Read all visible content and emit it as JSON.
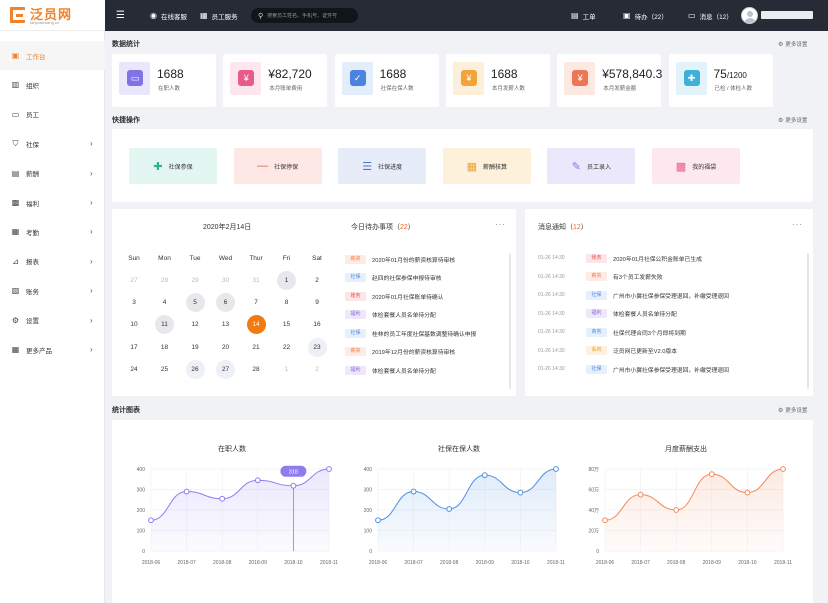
{
  "brand": {
    "name": "泛员网",
    "domain": "fanyuanwang.cn"
  },
  "topbar": {
    "online_service": "在线客服",
    "employee_service": "员工服务",
    "search_placeholder": "搜索员工姓名、手机号、证件号",
    "tickets": "工单",
    "todo": "待办（22）",
    "messages": "消息（12）"
  },
  "sidebar": {
    "items": [
      {
        "label": "工作台",
        "icon": "dashboard-icon",
        "arrow": false,
        "active": true
      },
      {
        "label": "组织",
        "icon": "org-icon",
        "arrow": false
      },
      {
        "label": "员工",
        "icon": "employee-icon",
        "arrow": false
      },
      {
        "label": "社保",
        "icon": "shield-icon",
        "arrow": true
      },
      {
        "label": "薪酬",
        "icon": "wallet-icon",
        "arrow": true
      },
      {
        "label": "福利",
        "icon": "gift-icon",
        "arrow": true
      },
      {
        "label": "考勤",
        "icon": "calendar-icon",
        "arrow": true
      },
      {
        "label": "报表",
        "icon": "report-icon",
        "arrow": true
      },
      {
        "label": "账务",
        "icon": "account-icon",
        "arrow": true
      },
      {
        "label": "设置",
        "icon": "gear-icon",
        "arrow": true
      },
      {
        "label": "更多产品",
        "icon": "grid-icon",
        "arrow": true
      }
    ]
  },
  "stats": {
    "title": "数据统计",
    "settings": "更多设置",
    "items": [
      {
        "value": "1688",
        "unit": "",
        "label": "在职人数",
        "icon": "tv-icon",
        "bg": "#e9e7fb",
        "fg": "#7f73e6"
      },
      {
        "value": "¥82,720",
        "unit": "",
        "label": "本月账单费用",
        "icon": "bill-icon",
        "bg": "#fde6ef",
        "fg": "#e85b8a"
      },
      {
        "value": "1688",
        "unit": "",
        "label": "社保在保人数",
        "icon": "check-doc-icon",
        "bg": "#e4edfb",
        "fg": "#4b84e0"
      },
      {
        "value": "1688",
        "unit": "",
        "label": "本月发薪人数",
        "icon": "salary-user-icon",
        "bg": "#fdf0da",
        "fg": "#f2a33a"
      },
      {
        "value": "¥578,840.3",
        "unit": "",
        "label": "本月发薪金额",
        "icon": "money-bag-icon",
        "bg": "#fde8e2",
        "fg": "#ee7655"
      },
      {
        "value": "75",
        "unit": "/1200",
        "label": "已检 / 体检人数",
        "icon": "medical-icon",
        "bg": "#e2f3fb",
        "fg": "#3fb0d8"
      }
    ]
  },
  "quick": {
    "title": "快捷操作",
    "settings": "更多设置",
    "items": [
      {
        "label": "社保参保",
        "icon": "add-user-icon",
        "bg": "#e3f6f1",
        "fg": "#2cb58d"
      },
      {
        "label": "社保停保",
        "icon": "remove-user-icon",
        "bg": "#fde8e6",
        "fg": "#e05a4f"
      },
      {
        "label": "社保进度",
        "icon": "sliders-icon",
        "bg": "#e6ecf8",
        "fg": "#4f78c9"
      },
      {
        "label": "薪酬核算",
        "icon": "calculator-icon",
        "bg": "#fdf1dc",
        "fg": "#f0a12e"
      },
      {
        "label": "员工录入",
        "icon": "pen-icon",
        "bg": "#ece8fb",
        "fg": "#8a71e0"
      },
      {
        "label": "我的福袋",
        "icon": "gift-box-icon",
        "bg": "#fde8ef",
        "fg": "#e75d8d"
      }
    ]
  },
  "calendar": {
    "title": "2020年2月14日",
    "weekdays": [
      "Sun",
      "Mon",
      "Tue",
      "Wed",
      "Thur",
      "Fri",
      "Sat"
    ],
    "days": [
      {
        "d": "27",
        "s": "muted"
      },
      {
        "d": "28",
        "s": "muted"
      },
      {
        "d": "29",
        "s": "muted"
      },
      {
        "d": "30",
        "s": "muted"
      },
      {
        "d": "31",
        "s": "muted"
      },
      {
        "d": "1",
        "s": "busy"
      },
      {
        "d": "2",
        "s": ""
      },
      {
        "d": "3",
        "s": ""
      },
      {
        "d": "4",
        "s": ""
      },
      {
        "d": "5",
        "s": "busy"
      },
      {
        "d": "6",
        "s": "busy"
      },
      {
        "d": "7",
        "s": ""
      },
      {
        "d": "8",
        "s": ""
      },
      {
        "d": "9",
        "s": ""
      },
      {
        "d": "10",
        "s": ""
      },
      {
        "d": "11",
        "s": "busy"
      },
      {
        "d": "12",
        "s": ""
      },
      {
        "d": "13",
        "s": ""
      },
      {
        "d": "14",
        "s": "today"
      },
      {
        "d": "15",
        "s": ""
      },
      {
        "d": "16",
        "s": ""
      },
      {
        "d": "17",
        "s": ""
      },
      {
        "d": "18",
        "s": ""
      },
      {
        "d": "19",
        "s": ""
      },
      {
        "d": "20",
        "s": ""
      },
      {
        "d": "21",
        "s": ""
      },
      {
        "d": "22",
        "s": ""
      },
      {
        "d": "23",
        "s": "sel"
      },
      {
        "d": "24",
        "s": ""
      },
      {
        "d": "25",
        "s": ""
      },
      {
        "d": "26",
        "s": "sel"
      },
      {
        "d": "27",
        "s": "sel"
      },
      {
        "d": "28",
        "s": ""
      },
      {
        "d": "1",
        "s": "muted"
      },
      {
        "d": "2",
        "s": "muted"
      }
    ]
  },
  "todo": {
    "title": "今日待办事项（",
    "count": "22",
    "close": "）",
    "items": [
      {
        "tag": "薪资",
        "color": "#f07c4a",
        "bg": "#fdece4",
        "text": "2020年01月份的薪资核算待审核"
      },
      {
        "tag": "社保",
        "color": "#4b86e0",
        "bg": "#e7effb",
        "text": "赵四的社保参保申报待审核"
      },
      {
        "tag": "账务",
        "color": "#e0505a",
        "bg": "#fde6e7",
        "text": "2020年01月社保账单待确认"
      },
      {
        "tag": "福利",
        "color": "#8a63d8",
        "bg": "#efe8fb",
        "text": "体检套餐人员名单待分配"
      },
      {
        "tag": "社保",
        "color": "#4b86e0",
        "bg": "#e7effb",
        "text": "桂林的员工年度社保基数调整待确认申报"
      },
      {
        "tag": "薪资",
        "color": "#f07c4a",
        "bg": "#fdece4",
        "text": "2019年12月份的薪资核算待审核"
      },
      {
        "tag": "福利",
        "color": "#8a63d8",
        "bg": "#efe8fb",
        "text": "体检套餐人员名单待分配"
      }
    ]
  },
  "messages": {
    "title": "消息通知（",
    "count": "12",
    "close": "）",
    "items": [
      {
        "time": "01-26  14:30",
        "tag": "账务",
        "color": "#e0505a",
        "bg": "#fde6e7",
        "text": "2020年01月社保公积金账单已生成"
      },
      {
        "time": "01-26  14:30",
        "tag": "薪资",
        "color": "#f07c4a",
        "bg": "#fdece4",
        "text": "有3个员工发薪失败"
      },
      {
        "time": "01-26  14:30",
        "tag": "社保",
        "color": "#4b86e0",
        "bg": "#e7effb",
        "text": "广州市小翼社保参保受理退回，补缴受理退回"
      },
      {
        "time": "01-26  14:30",
        "tag": "福利",
        "color": "#8a63d8",
        "bg": "#efe8fb",
        "text": "体检套餐人员名单待分配"
      },
      {
        "time": "01-26  14:30",
        "tag": "商务",
        "color": "#4b86e0",
        "bg": "#e7effb",
        "text": "社保代理合同3个月即将到期"
      },
      {
        "time": "01-26  14:30",
        "tag": "系统",
        "color": "#f0a12e",
        "bg": "#fdf2df",
        "text": "泛员网已更新至V2.0版本"
      },
      {
        "time": "01-26  14:30",
        "tag": "社保",
        "color": "#4b86e0",
        "bg": "#e7effb",
        "text": "广州市小翼社保参保受理退回，补缴受理退回"
      }
    ]
  },
  "charts_section": {
    "title": "统计图表",
    "settings": "更多设置"
  },
  "chart_data": [
    {
      "type": "area",
      "title": "在职人数",
      "x": [
        "2018-06",
        "2018-07",
        "2018-08",
        "2018-09",
        "2018-10",
        "2018-11"
      ],
      "y": [
        150,
        290,
        255,
        345,
        318,
        400
      ],
      "yticks": [
        "0",
        "100",
        "200",
        "300",
        "400"
      ],
      "ylim": [
        0,
        400
      ],
      "color": "#8f7df0",
      "tooltip": "318"
    },
    {
      "type": "area",
      "title": "社保在保人数",
      "x": [
        "2018-06",
        "2018-07",
        "2018-08",
        "2018-09",
        "2018-10",
        "2018-11"
      ],
      "y": [
        150,
        290,
        205,
        370,
        285,
        400
      ],
      "yticks": [
        "0",
        "100",
        "200",
        "300",
        "400"
      ],
      "ylim": [
        0,
        400
      ],
      "color": "#4a90e2"
    },
    {
      "type": "area",
      "title": "月度薪酬支出",
      "x": [
        "2018-06",
        "2018-07",
        "2018-08",
        "2018-09",
        "2018-10",
        "2018-11"
      ],
      "y": [
        30,
        55,
        40,
        75,
        57,
        80
      ],
      "yticks": [
        "0",
        "20万",
        "40万",
        "60万",
        "80万"
      ],
      "ylim": [
        0,
        80
      ],
      "color": "#f08a5d"
    }
  ]
}
